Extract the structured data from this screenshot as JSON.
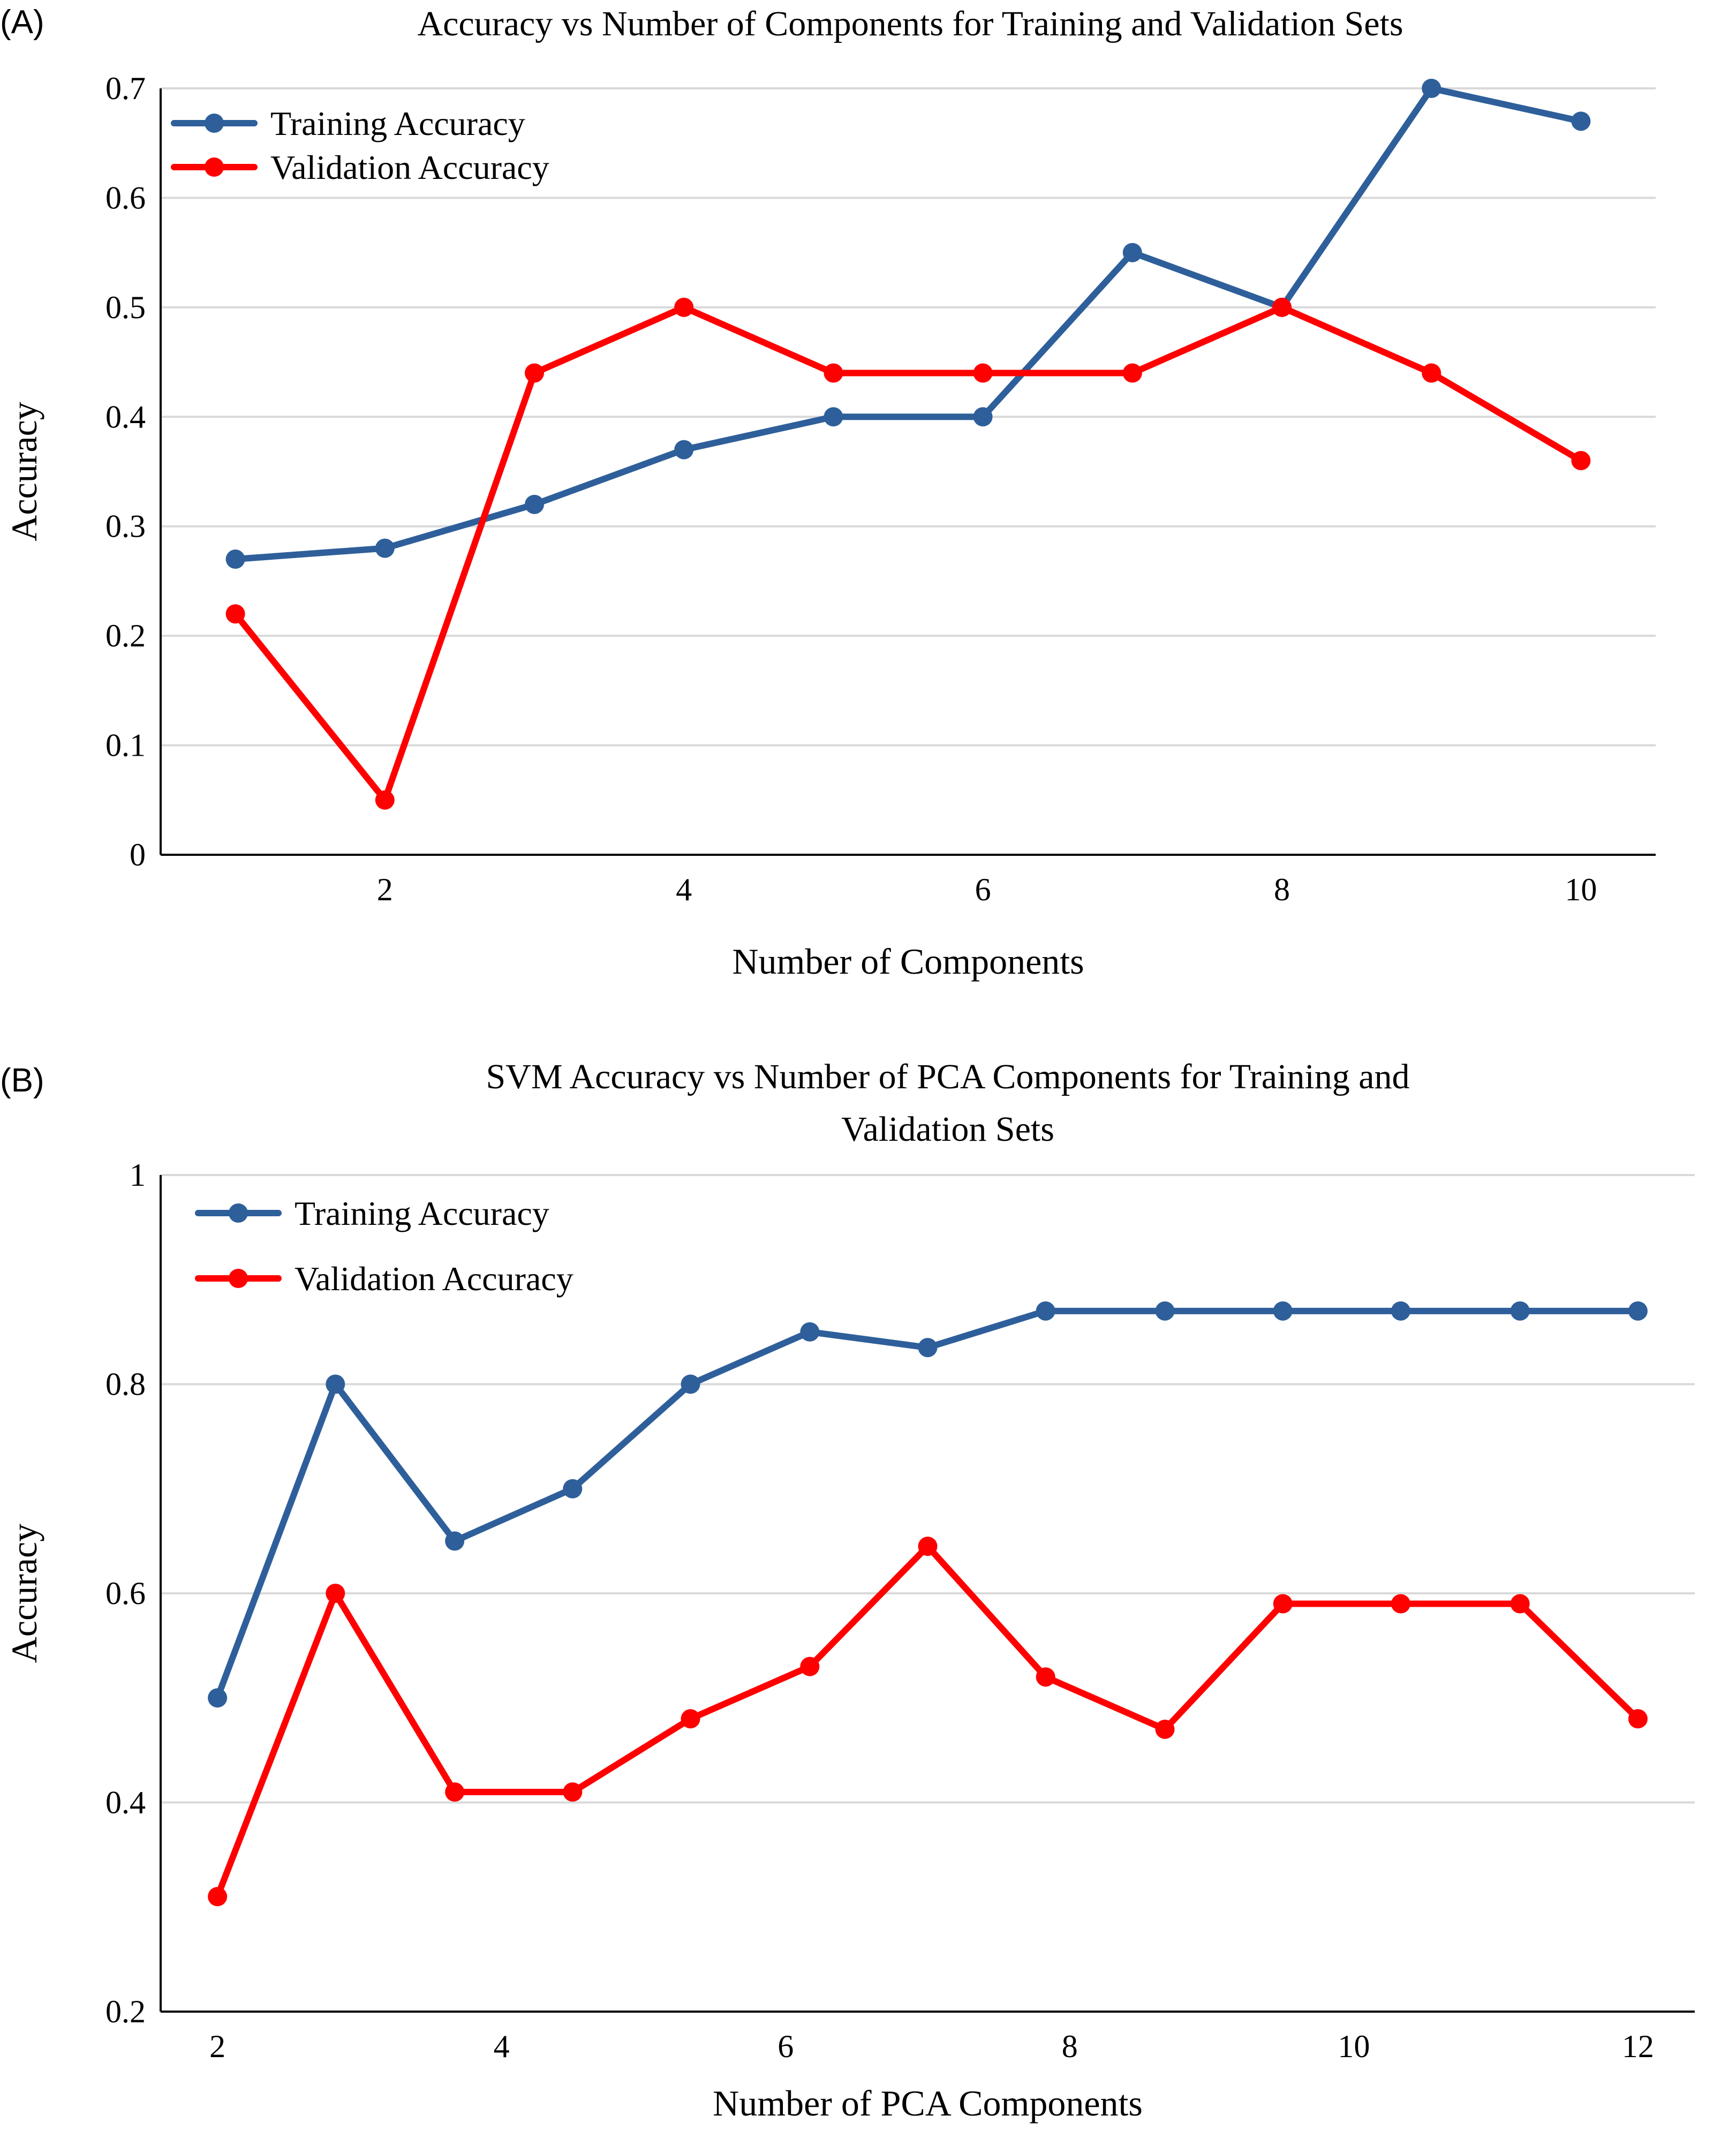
{
  "figure": {
    "panel_a_label": "(A)",
    "panel_b_label": "(B)"
  },
  "chart_data": [
    {
      "type": "line",
      "title": "Accuracy vs Number of Components for Training and Validation Sets",
      "xlabel": "Number of Components",
      "ylabel": "Accuracy",
      "xlim": [
        0.5,
        10.5
      ],
      "ylim": [
        0,
        0.7
      ],
      "x_ticks": [
        2,
        4,
        6,
        8,
        10
      ],
      "x_tick_labels": [
        "2",
        "4",
        "6",
        "8",
        "10"
      ],
      "y_ticks": [
        0,
        0.1,
        0.2,
        0.3,
        0.4,
        0.5,
        0.6,
        0.7
      ],
      "y_tick_labels": [
        "0",
        "0.1",
        "0.2",
        "0.3",
        "0.4",
        "0.5",
        "0.6",
        "0.7"
      ],
      "grid": "horizontal",
      "legend_position": "top-left",
      "x": [
        1,
        2,
        3,
        4,
        5,
        6,
        7,
        8,
        9,
        10
      ],
      "series": [
        {
          "name": "Training Accuracy",
          "color": "#2e5f9a",
          "values": [
            0.27,
            0.28,
            0.32,
            0.37,
            0.4,
            0.4,
            0.55,
            0.5,
            0.7,
            0.67
          ]
        },
        {
          "name": "Validation Accuracy",
          "color": "#ff0000",
          "values": [
            0.22,
            0.05,
            0.44,
            0.5,
            0.44,
            0.44,
            0.44,
            0.5,
            0.44,
            0.36
          ]
        }
      ]
    },
    {
      "type": "line",
      "title": "SVM Accuracy vs Number of PCA Components for Training and Validation Sets",
      "title_lines": [
        "SVM Accuracy vs Number of PCA Components for Training and",
        "Validation Sets"
      ],
      "xlabel": "Number of PCA Components",
      "ylabel": "Accuracy",
      "xlim": [
        1.6,
        12.4
      ],
      "ylim": [
        0.2,
        1.0
      ],
      "x_ticks": [
        2,
        4,
        6,
        8,
        10,
        12
      ],
      "x_tick_labels": [
        "2",
        "4",
        "6",
        "8",
        "10",
        "12"
      ],
      "y_ticks": [
        0.2,
        0.4,
        0.6,
        0.8,
        1.0
      ],
      "y_tick_labels": [
        "0.2",
        "0.4",
        "0.6",
        "0.8",
        "1"
      ],
      "grid": "horizontal",
      "legend_position": "top-left",
      "x": [
        2,
        2.83,
        3.67,
        4.5,
        5.33,
        6.17,
        7.0,
        7.83,
        8.67,
        9.5,
        10.33,
        11.17,
        12
      ],
      "series": [
        {
          "name": "Training Accuracy",
          "color": "#2e5f9a",
          "values": [
            0.5,
            0.8,
            0.65,
            0.7,
            0.8,
            0.85,
            0.835,
            0.87,
            0.87,
            0.87,
            0.87,
            0.87,
            0.87
          ]
        },
        {
          "name": "Validation Accuracy",
          "color": "#ff0000",
          "values": [
            0.31,
            0.6,
            0.41,
            0.41,
            0.48,
            0.53,
            0.645,
            0.52,
            0.47,
            0.59,
            0.59,
            0.59,
            0.48
          ]
        }
      ]
    }
  ]
}
